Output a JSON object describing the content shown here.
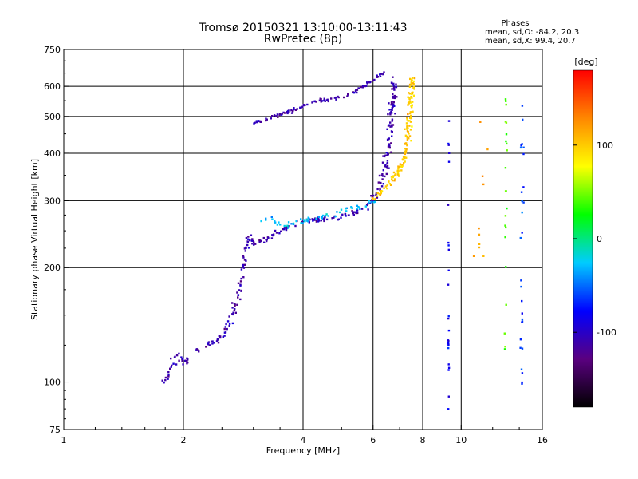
{
  "header": {
    "title_line1": "Tromsø 20150321 13:10:00-13:11:43",
    "title_line2": "RwPretec (8p)"
  },
  "stats": {
    "heading": "Phases",
    "line_o": "mean, sd,O: -84.2, 20.3",
    "line_x": "mean, sd,X:  99.4, 20.7"
  },
  "chart_data": {
    "type": "scatter",
    "xlabel": "Frequency [MHz]",
    "ylabel": "Stationary phase Virtual Height [km]",
    "x_scale": "log",
    "y_scale": "log",
    "xlim": [
      1,
      16
    ],
    "ylim": [
      75,
      750
    ],
    "x_ticks": [
      {
        "value": 1,
        "label": "1"
      },
      {
        "value": 2,
        "label": "2"
      },
      {
        "value": 4,
        "label": "4"
      },
      {
        "value": 6,
        "label": "6"
      },
      {
        "value": 8,
        "label": "8"
      },
      {
        "value": 10,
        "label": "10"
      },
      {
        "value": 16,
        "label": "16"
      }
    ],
    "y_ticks": [
      {
        "value": 75,
        "label": "75"
      },
      {
        "value": 100,
        "label": "100"
      },
      {
        "value": 200,
        "label": "200"
      },
      {
        "value": 300,
        "label": "300"
      },
      {
        "value": 400,
        "label": "400"
      },
      {
        "value": 500,
        "label": "500"
      },
      {
        "value": 600,
        "label": "600"
      },
      {
        "value": 750,
        "label": "750"
      }
    ],
    "grid": true,
    "colorbar": {
      "label": "[deg]",
      "min": -180,
      "max": 180,
      "ticks": [
        {
          "value": 100,
          "label": "100"
        },
        {
          "value": 0,
          "label": "0"
        },
        {
          "value": -100,
          "label": "-100"
        }
      ],
      "colors": [
        "#000000",
        "#5a0080",
        "#0000ff",
        "#00ccff",
        "#00ff00",
        "#ffff00",
        "#ff8800",
        "#ff0000"
      ]
    },
    "series": [
      {
        "trace": [
          [
            1.8,
            100
          ],
          [
            1.85,
            108
          ],
          [
            1.9,
            115
          ],
          [
            1.95,
            120
          ],
          [
            2.0,
            112
          ],
          [
            2.1,
            118
          ],
          [
            2.2,
            122
          ],
          [
            2.4,
            128
          ],
          [
            2.55,
            135
          ],
          [
            2.62,
            145
          ],
          [
            2.7,
            160
          ],
          [
            2.8,
            180
          ],
          [
            2.9,
            240
          ],
          [
            3.0,
            232
          ],
          [
            3.2,
            236
          ],
          [
            3.5,
            250
          ],
          [
            3.8,
            260
          ],
          [
            4.0,
            265
          ],
          [
            4.4,
            268
          ],
          [
            4.8,
            270
          ],
          [
            5.2,
            275
          ],
          [
            5.6,
            285
          ],
          [
            6.0,
            300
          ],
          [
            6.3,
            330
          ],
          [
            6.5,
            380
          ],
          [
            6.65,
            450
          ],
          [
            6.72,
            550
          ],
          [
            6.75,
            640
          ]
        ],
        "count": 320,
        "jitter": 0.06,
        "phase": -110
      },
      {
        "trace": [
          [
            6.0,
            305
          ],
          [
            6.4,
            320
          ],
          [
            6.8,
            345
          ],
          [
            7.1,
            375
          ],
          [
            7.3,
            420
          ],
          [
            7.4,
            490
          ],
          [
            7.48,
            560
          ],
          [
            7.55,
            630
          ]
        ],
        "count": 150,
        "jitter": 0.05,
        "phase": 100
      },
      {
        "trace": [
          [
            3.0,
            480
          ],
          [
            3.4,
            500
          ],
          [
            3.8,
            520
          ],
          [
            4.2,
            545
          ],
          [
            4.7,
            555
          ],
          [
            5.2,
            570
          ],
          [
            5.7,
            600
          ],
          [
            6.0,
            625
          ],
          [
            6.4,
            655
          ]
        ],
        "count": 110,
        "jitter": 0.04,
        "phase": -110
      },
      {
        "trace": [
          [
            3.2,
            270
          ],
          [
            3.6,
            258
          ],
          [
            4.2,
            268
          ],
          [
            4.8,
            278
          ],
          [
            5.6,
            292
          ],
          [
            6.2,
            300
          ]
        ],
        "count": 60,
        "jitter": 0.07,
        "phase": -30
      },
      {
        "trace": [
          [
            9.3,
            80
          ],
          [
            9.3,
            500
          ]
        ],
        "count": 25,
        "jitter": 0.01,
        "phase": -80
      },
      {
        "trace": [
          [
            14.2,
            95
          ],
          [
            14.3,
            560
          ]
        ],
        "count": 28,
        "jitter": 0.03,
        "phase": -60
      },
      {
        "trace": [
          [
            12.9,
            110
          ],
          [
            13.0,
            620
          ]
        ],
        "count": 22,
        "jitter": 0.02,
        "phase": 40
      },
      {
        "trace": [
          [
            11.0,
            180
          ],
          [
            11.5,
            600
          ]
        ],
        "count": 10,
        "jitter": 0.08,
        "phase": 120
      }
    ]
  }
}
